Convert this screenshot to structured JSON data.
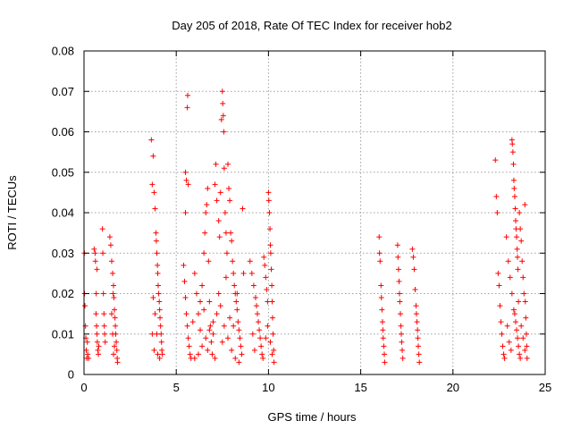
{
  "chart_data": {
    "type": "scatter",
    "title": "Day 205 of 2018, Rate Of TEC Index for receiver hob2",
    "xlabel": "GPS time / hours",
    "ylabel": "ROTI / TECUs",
    "xlim": [
      0,
      25
    ],
    "ylim": [
      0,
      0.08
    ],
    "xticks": [
      0,
      5,
      10,
      15,
      20,
      25
    ],
    "yticks": [
      0,
      0.01,
      0.02,
      0.03,
      0.04,
      0.05,
      0.06,
      0.07,
      0.08
    ],
    "xtick_labels": [
      "0",
      "5",
      "10",
      "15",
      "20",
      "25"
    ],
    "ytick_labels": [
      "0",
      "0.01",
      "0.02",
      "0.03",
      "0.04",
      "0.05",
      "0.06",
      "0.07",
      "0.08"
    ],
    "grid": true,
    "marker": "+",
    "color": "#ff0000",
    "series": [
      {
        "values": [
          [
            0.02,
            0.03
          ],
          [
            0.03,
            0.02
          ],
          [
            0.05,
            0.017
          ],
          [
            0.08,
            0.012
          ],
          [
            0.1,
            0.009
          ],
          [
            0.12,
            0.006
          ],
          [
            0.15,
            0.004
          ],
          [
            0.18,
            0.008
          ],
          [
            0.2,
            0.005
          ],
          [
            0.25,
            0.004
          ],
          [
            0.55,
            0.031
          ],
          [
            0.6,
            0.03
          ],
          [
            0.62,
            0.028
          ],
          [
            0.65,
            0.015
          ],
          [
            0.68,
            0.012
          ],
          [
            0.7,
            0.01
          ],
          [
            0.72,
            0.008
          ],
          [
            0.75,
            0.006
          ],
          [
            0.78,
            0.005
          ],
          [
            0.8,
            0.007
          ],
          [
            0.7,
            0.026
          ],
          [
            0.66,
            0.02
          ],
          [
            1.0,
            0.036
          ],
          [
            1.02,
            0.03
          ],
          [
            1.05,
            0.02
          ],
          [
            1.08,
            0.015
          ],
          [
            1.1,
            0.012
          ],
          [
            1.12,
            0.01
          ],
          [
            1.15,
            0.008
          ],
          [
            1.4,
            0.034
          ],
          [
            1.45,
            0.032
          ],
          [
            1.5,
            0.028
          ],
          [
            1.55,
            0.025
          ],
          [
            1.6,
            0.022
          ],
          [
            1.62,
            0.019
          ],
          [
            1.65,
            0.016
          ],
          [
            1.68,
            0.014
          ],
          [
            1.7,
            0.012
          ],
          [
            1.72,
            0.01
          ],
          [
            1.75,
            0.008
          ],
          [
            1.78,
            0.006
          ],
          [
            1.8,
            0.004
          ],
          [
            1.82,
            0.003
          ],
          [
            1.5,
            0.015
          ],
          [
            1.55,
            0.01
          ],
          [
            1.6,
            0.005
          ],
          [
            1.65,
            0.007
          ],
          [
            1.58,
            0.02
          ],
          [
            3.65,
            0.058
          ],
          [
            3.7,
            0.047
          ],
          [
            3.75,
            0.054
          ],
          [
            3.8,
            0.045
          ],
          [
            3.85,
            0.041
          ],
          [
            3.9,
            0.035
          ],
          [
            3.92,
            0.033
          ],
          [
            3.95,
            0.03
          ],
          [
            3.98,
            0.027
          ],
          [
            4.0,
            0.025
          ],
          [
            4.02,
            0.022
          ],
          [
            4.05,
            0.02
          ],
          [
            4.08,
            0.018
          ],
          [
            4.1,
            0.016
          ],
          [
            4.12,
            0.014
          ],
          [
            4.15,
            0.012
          ],
          [
            4.18,
            0.01
          ],
          [
            4.2,
            0.008
          ],
          [
            4.22,
            0.006
          ],
          [
            4.25,
            0.005
          ],
          [
            3.75,
            0.019
          ],
          [
            3.85,
            0.015
          ],
          [
            3.95,
            0.01
          ],
          [
            4.0,
            0.005
          ],
          [
            3.7,
            0.01
          ],
          [
            3.8,
            0.006
          ],
          [
            4.1,
            0.004
          ],
          [
            5.5,
            0.05
          ],
          [
            5.55,
            0.048
          ],
          [
            5.6,
            0.066
          ],
          [
            5.62,
            0.069
          ],
          [
            5.65,
            0.047
          ],
          [
            5.5,
            0.04
          ],
          [
            5.4,
            0.027
          ],
          [
            5.45,
            0.023
          ],
          [
            5.5,
            0.019
          ],
          [
            5.55,
            0.015
          ],
          [
            5.6,
            0.012
          ],
          [
            5.65,
            0.009
          ],
          [
            5.7,
            0.007
          ],
          [
            5.75,
            0.005
          ],
          [
            5.8,
            0.004
          ],
          [
            6.0,
            0.025
          ],
          [
            6.1,
            0.02
          ],
          [
            6.2,
            0.015
          ],
          [
            6.3,
            0.018
          ],
          [
            6.4,
            0.022
          ],
          [
            6.5,
            0.03
          ],
          [
            6.55,
            0.035
          ],
          [
            6.6,
            0.04
          ],
          [
            6.65,
            0.042
          ],
          [
            6.7,
            0.046
          ],
          [
            6.75,
            0.028
          ],
          [
            6.8,
            0.018
          ],
          [
            6.85,
            0.012
          ],
          [
            6.9,
            0.008
          ],
          [
            6.95,
            0.005
          ],
          [
            7.0,
            0.01
          ],
          [
            7.1,
            0.047
          ],
          [
            7.15,
            0.052
          ],
          [
            7.2,
            0.043
          ],
          [
            7.3,
            0.038
          ],
          [
            7.35,
            0.034
          ],
          [
            7.4,
            0.045
          ],
          [
            7.45,
            0.063
          ],
          [
            7.5,
            0.07
          ],
          [
            7.52,
            0.067
          ],
          [
            7.55,
            0.064
          ],
          [
            7.58,
            0.06
          ],
          [
            7.6,
            0.051
          ],
          [
            7.65,
            0.04
          ],
          [
            7.7,
            0.035
          ],
          [
            7.75,
            0.03
          ],
          [
            7.8,
            0.052
          ],
          [
            7.85,
            0.046
          ],
          [
            7.9,
            0.043
          ],
          [
            7.95,
            0.035
          ],
          [
            8.0,
            0.033
          ],
          [
            8.05,
            0.028
          ],
          [
            8.1,
            0.025
          ],
          [
            8.15,
            0.022
          ],
          [
            8.2,
            0.02
          ],
          [
            8.25,
            0.018
          ],
          [
            8.3,
            0.016
          ],
          [
            8.35,
            0.013
          ],
          [
            8.4,
            0.011
          ],
          [
            8.45,
            0.009
          ],
          [
            8.5,
            0.007
          ],
          [
            8.55,
            0.005
          ],
          [
            8.6,
            0.041
          ],
          [
            8.65,
            0.025
          ],
          [
            6.2,
            0.005
          ],
          [
            6.4,
            0.007
          ],
          [
            6.6,
            0.009
          ],
          [
            6.8,
            0.011
          ],
          [
            7.0,
            0.013
          ],
          [
            7.2,
            0.015
          ],
          [
            7.4,
            0.017
          ],
          [
            7.6,
            0.012
          ],
          [
            7.8,
            0.009
          ],
          [
            8.0,
            0.006
          ],
          [
            8.2,
            0.004
          ],
          [
            8.4,
            0.003
          ],
          [
            5.9,
            0.013
          ],
          [
            6.3,
            0.011
          ],
          [
            6.7,
            0.006
          ],
          [
            7.1,
            0.004
          ],
          [
            7.5,
            0.008
          ],
          [
            7.9,
            0.014
          ],
          [
            8.3,
            0.02
          ],
          [
            6.0,
            0.004
          ],
          [
            6.5,
            0.016
          ],
          [
            7.3,
            0.02
          ],
          [
            7.7,
            0.024
          ],
          [
            8.1,
            0.012
          ],
          [
            9.0,
            0.028
          ],
          [
            9.1,
            0.025
          ],
          [
            9.2,
            0.022
          ],
          [
            9.3,
            0.019
          ],
          [
            9.35,
            0.017
          ],
          [
            9.4,
            0.015
          ],
          [
            9.45,
            0.013
          ],
          [
            9.5,
            0.011
          ],
          [
            9.55,
            0.009
          ],
          [
            9.6,
            0.007
          ],
          [
            9.65,
            0.005
          ],
          [
            9.7,
            0.004
          ],
          [
            9.75,
            0.029
          ],
          [
            9.8,
            0.027
          ],
          [
            9.85,
            0.024
          ],
          [
            9.9,
            0.021
          ],
          [
            9.95,
            0.018
          ],
          [
            10.0,
            0.045
          ],
          [
            10.02,
            0.043
          ],
          [
            10.05,
            0.04
          ],
          [
            10.08,
            0.036
          ],
          [
            10.1,
            0.032
          ],
          [
            10.12,
            0.03
          ],
          [
            10.15,
            0.026
          ],
          [
            10.18,
            0.022
          ],
          [
            10.2,
            0.018
          ],
          [
            10.22,
            0.014
          ],
          [
            10.25,
            0.01
          ],
          [
            10.28,
            0.006
          ],
          [
            10.3,
            0.003
          ],
          [
            9.25,
            0.006
          ],
          [
            9.15,
            0.01
          ],
          [
            9.85,
            0.009
          ],
          [
            9.95,
            0.012
          ],
          [
            10.1,
            0.008
          ],
          [
            10.2,
            0.005
          ],
          [
            16.0,
            0.034
          ],
          [
            16.02,
            0.03
          ],
          [
            16.05,
            0.028
          ],
          [
            16.1,
            0.022
          ],
          [
            16.12,
            0.019
          ],
          [
            16.15,
            0.016
          ],
          [
            16.18,
            0.013
          ],
          [
            16.2,
            0.011
          ],
          [
            16.22,
            0.009
          ],
          [
            16.25,
            0.007
          ],
          [
            16.28,
            0.005
          ],
          [
            16.3,
            0.003
          ],
          [
            17.0,
            0.032
          ],
          [
            17.02,
            0.029
          ],
          [
            17.05,
            0.026
          ],
          [
            17.08,
            0.023
          ],
          [
            17.1,
            0.02
          ],
          [
            17.12,
            0.018
          ],
          [
            17.15,
            0.015
          ],
          [
            17.18,
            0.012
          ],
          [
            17.2,
            0.01
          ],
          [
            17.22,
            0.008
          ],
          [
            17.25,
            0.006
          ],
          [
            17.28,
            0.004
          ],
          [
            17.8,
            0.031
          ],
          [
            17.85,
            0.029
          ],
          [
            17.9,
            0.026
          ],
          [
            17.95,
            0.021
          ],
          [
            18.0,
            0.017
          ],
          [
            18.02,
            0.015
          ],
          [
            18.05,
            0.013
          ],
          [
            18.08,
            0.011
          ],
          [
            18.1,
            0.009
          ],
          [
            18.12,
            0.007
          ],
          [
            18.15,
            0.005
          ],
          [
            18.18,
            0.003
          ],
          [
            22.3,
            0.053
          ],
          [
            22.35,
            0.044
          ],
          [
            22.4,
            0.04
          ],
          [
            22.45,
            0.025
          ],
          [
            22.5,
            0.022
          ],
          [
            22.55,
            0.017
          ],
          [
            22.6,
            0.013
          ],
          [
            22.65,
            0.01
          ],
          [
            22.7,
            0.007
          ],
          [
            22.75,
            0.005
          ],
          [
            22.8,
            0.004
          ],
          [
            22.9,
            0.034
          ],
          [
            23.0,
            0.028
          ],
          [
            23.1,
            0.024
          ],
          [
            23.2,
            0.02
          ],
          [
            23.3,
            0.016
          ],
          [
            23.4,
            0.013
          ],
          [
            23.45,
            0.011
          ],
          [
            23.5,
            0.009
          ],
          [
            23.55,
            0.007
          ],
          [
            23.6,
            0.005
          ],
          [
            23.65,
            0.004
          ],
          [
            23.2,
            0.058
          ],
          [
            23.22,
            0.057
          ],
          [
            23.25,
            0.055
          ],
          [
            23.28,
            0.052
          ],
          [
            23.3,
            0.048
          ],
          [
            23.32,
            0.046
          ],
          [
            23.35,
            0.044
          ],
          [
            23.38,
            0.041
          ],
          [
            23.4,
            0.038
          ],
          [
            23.42,
            0.036
          ],
          [
            23.45,
            0.034
          ],
          [
            23.48,
            0.031
          ],
          [
            23.5,
            0.029
          ],
          [
            23.52,
            0.026
          ],
          [
            23.6,
            0.04
          ],
          [
            23.65,
            0.036
          ],
          [
            23.7,
            0.033
          ],
          [
            23.75,
            0.028
          ],
          [
            23.8,
            0.024
          ],
          [
            23.85,
            0.02
          ],
          [
            23.9,
            0.042
          ],
          [
            23.92,
            0.018
          ],
          [
            23.95,
            0.014
          ],
          [
            23.98,
            0.01
          ],
          [
            24.0,
            0.007
          ],
          [
            24.02,
            0.004
          ],
          [
            22.95,
            0.012
          ],
          [
            23.05,
            0.008
          ],
          [
            23.15,
            0.006
          ],
          [
            23.35,
            0.015
          ],
          [
            23.55,
            0.018
          ],
          [
            23.7,
            0.012
          ],
          [
            23.8,
            0.009
          ],
          [
            23.9,
            0.006
          ]
        ]
      }
    ]
  }
}
